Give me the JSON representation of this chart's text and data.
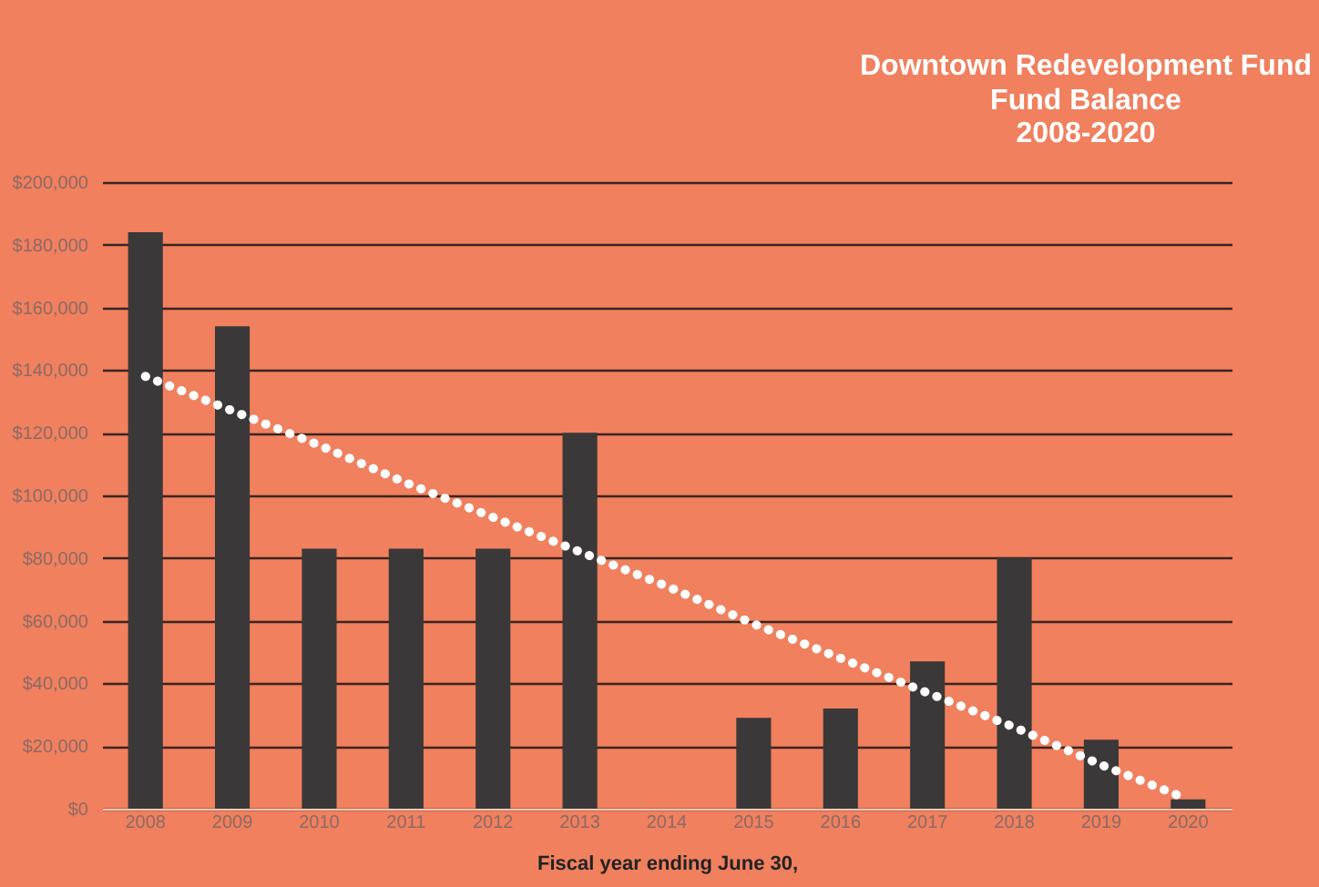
{
  "chart_data": {
    "type": "bar",
    "title": "Downtown Redevelopment Fund",
    "subtitle": [
      "Fund Balance",
      "2008-2020"
    ],
    "xlabel": "Fiscal year ending June 30,",
    "categories": [
      "2008",
      "2009",
      "2010",
      "2011",
      "2012",
      "2013",
      "2014",
      "2015",
      "2016",
      "2017",
      "2018",
      "2019",
      "2020"
    ],
    "series": [
      {
        "color": "#3a3838",
        "values": [
          184000,
          154000,
          83000,
          83000,
          83000,
          120000,
          null,
          29000,
          32000,
          47000,
          80000,
          22000,
          3000
        ]
      },
      {
        "type": "line",
        "color": "#ffffff",
        "line_style": "dotted",
        "values": [
          138000,
          127000,
          116000,
          104000,
          93000,
          82000,
          71000,
          59000,
          48000,
          37000,
          26000,
          14000,
          3000
        ]
      }
    ],
    "ylim": [
      0,
      200000
    ],
    "yticks": [
      {
        "value": 0,
        "label": "$0"
      },
      {
        "value": 20000,
        "label": "$20,000"
      },
      {
        "value": 40000,
        "label": "$40,000"
      },
      {
        "value": 60000,
        "label": "$60,000"
      },
      {
        "value": 80000,
        "label": "$80,000"
      },
      {
        "value": 100000,
        "label": "$100,000"
      },
      {
        "value": 120000,
        "label": "$120,000"
      },
      {
        "value": 140000,
        "label": "$140,000"
      },
      {
        "value": 160000,
        "label": "$160,000"
      },
      {
        "value": 180000,
        "label": "$180,000"
      },
      {
        "value": 200000,
        "label": "$200,000"
      }
    ],
    "grid": "y"
  }
}
